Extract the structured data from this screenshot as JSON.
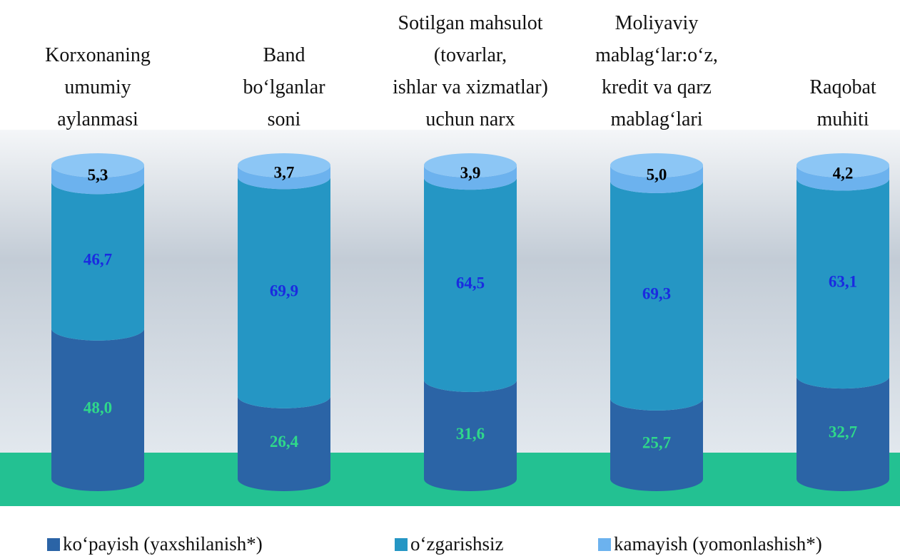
{
  "chart_data": {
    "type": "stacked-cylinder",
    "categories": [
      "Korxonaning\numumiy\naylanmasi",
      "Band\nbo‘lganlar\nsoni",
      "Sotilgan mahsulot\n(tovarlar,\nishlar va xizmatlar)\nuchun narx",
      "Moliyaviy\nmablag‘lar:o‘z,\nkredit va qarz\nmablag‘lari",
      "Raqobat\nmuhiti"
    ],
    "series": [
      {
        "name": "ko‘payish (yaxshilanish*)",
        "color": "#2b64a6",
        "label_color": "#2fd88a",
        "values": [
          48.0,
          26.4,
          31.6,
          25.7,
          32.7
        ],
        "value_labels": [
          "48,0",
          "26,4",
          "31,6",
          "25,7",
          "32,7"
        ]
      },
      {
        "name": "o‘zgarishsiz",
        "color": "#2596c4",
        "label_color": "#1a2be0",
        "values": [
          46.7,
          69.9,
          64.5,
          69.3,
          63.1
        ],
        "value_labels": [
          "46,7",
          "69,9",
          "64,5",
          "69,3",
          "63,1"
        ]
      },
      {
        "name": "kamayish (yomonlashish*)",
        "color": "#6cb2ee",
        "label_color": "#000000",
        "values": [
          5.3,
          3.7,
          3.9,
          5.0,
          4.2
        ],
        "value_labels": [
          "5,3",
          "3,7",
          "3,9",
          "5,0",
          "4,2"
        ]
      }
    ],
    "legend": "bottom"
  }
}
